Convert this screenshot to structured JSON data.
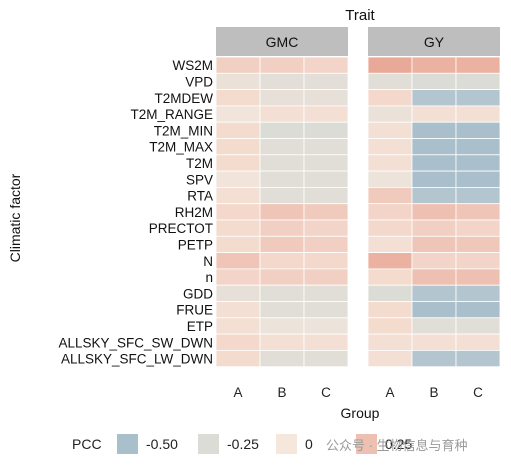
{
  "chart_data": {
    "type": "heatmap",
    "facet_title": "Trait",
    "facets": [
      "GMC",
      "GY"
    ],
    "x": [
      "A",
      "B",
      "C"
    ],
    "y": [
      "WS2M",
      "VPD",
      "T2MDEW",
      "T2M_RANGE",
      "T2M_MIN",
      "T2M_MAX",
      "T2M",
      "SPV",
      "RTA",
      "RH2M",
      "PRECTOT",
      "PETP",
      "N",
      "n",
      "GDD",
      "FRUE",
      "ETP",
      "ALLSKY_SFC_SW_DWN",
      "ALLSKY_SFC_LW_DWN"
    ],
    "xlabel": "Group",
    "ylabel": "Climatic factor",
    "values": {
      "GMC": [
        [
          0.15,
          0.15,
          0.12
        ],
        [
          -0.12,
          -0.18,
          -0.18
        ],
        [
          0.08,
          -0.15,
          -0.15
        ],
        [
          -0.05,
          0.05,
          0.05
        ],
        [
          0.08,
          -0.25,
          -0.25
        ],
        [
          0.08,
          -0.2,
          -0.2
        ],
        [
          0.08,
          -0.2,
          -0.2
        ],
        [
          -0.05,
          -0.2,
          -0.2
        ],
        [
          0.05,
          -0.2,
          -0.2
        ],
        [
          0.1,
          0.22,
          0.18
        ],
        [
          0.08,
          0.15,
          0.12
        ],
        [
          0.08,
          0.18,
          0.15
        ],
        [
          0.22,
          0.1,
          0.1
        ],
        [
          0.12,
          0.15,
          0.15
        ],
        [
          -0.15,
          -0.2,
          -0.2
        ],
        [
          0.05,
          -0.2,
          -0.2
        ],
        [
          0.05,
          -0.1,
          -0.1
        ],
        [
          0.1,
          0.05,
          0.05
        ],
        [
          0.08,
          -0.2,
          -0.2
        ]
      ],
      "GY": [
        [
          0.4,
          0.35,
          0.35
        ],
        [
          -0.2,
          -0.25,
          -0.25
        ],
        [
          0.1,
          -0.45,
          -0.45
        ],
        [
          -0.12,
          0.05,
          0.05
        ],
        [
          0.05,
          -0.55,
          -0.55
        ],
        [
          0.05,
          -0.5,
          -0.5
        ],
        [
          0.05,
          -0.5,
          -0.5
        ],
        [
          -0.1,
          -0.5,
          -0.5
        ],
        [
          0.18,
          -0.45,
          -0.45
        ],
        [
          0.12,
          0.25,
          0.22
        ],
        [
          0.1,
          0.15,
          0.12
        ],
        [
          0.05,
          0.22,
          0.2
        ],
        [
          0.35,
          0.12,
          0.12
        ],
        [
          0.08,
          0.25,
          0.25
        ],
        [
          -0.25,
          -0.45,
          -0.45
        ],
        [
          0.08,
          -0.5,
          -0.5
        ],
        [
          0.08,
          -0.2,
          -0.2
        ],
        [
          0.05,
          0.05,
          0.05
        ],
        [
          0.05,
          -0.45,
          -0.45
        ]
      ]
    },
    "legend": {
      "title": "PCC",
      "breaks": [
        -0.5,
        -0.25,
        0,
        0.25
      ],
      "labels": [
        "-0.50",
        "-0.25",
        "0",
        "0.25"
      ],
      "placement": "bottom"
    },
    "colors": {
      "negative": "#a9bfcc",
      "mid": "#dcdcd6",
      "zero": "#f6e7dc",
      "positive": "#e9a998",
      "strip": "#bebebe"
    }
  },
  "watermark": "公众号 · 生物信息与育种"
}
